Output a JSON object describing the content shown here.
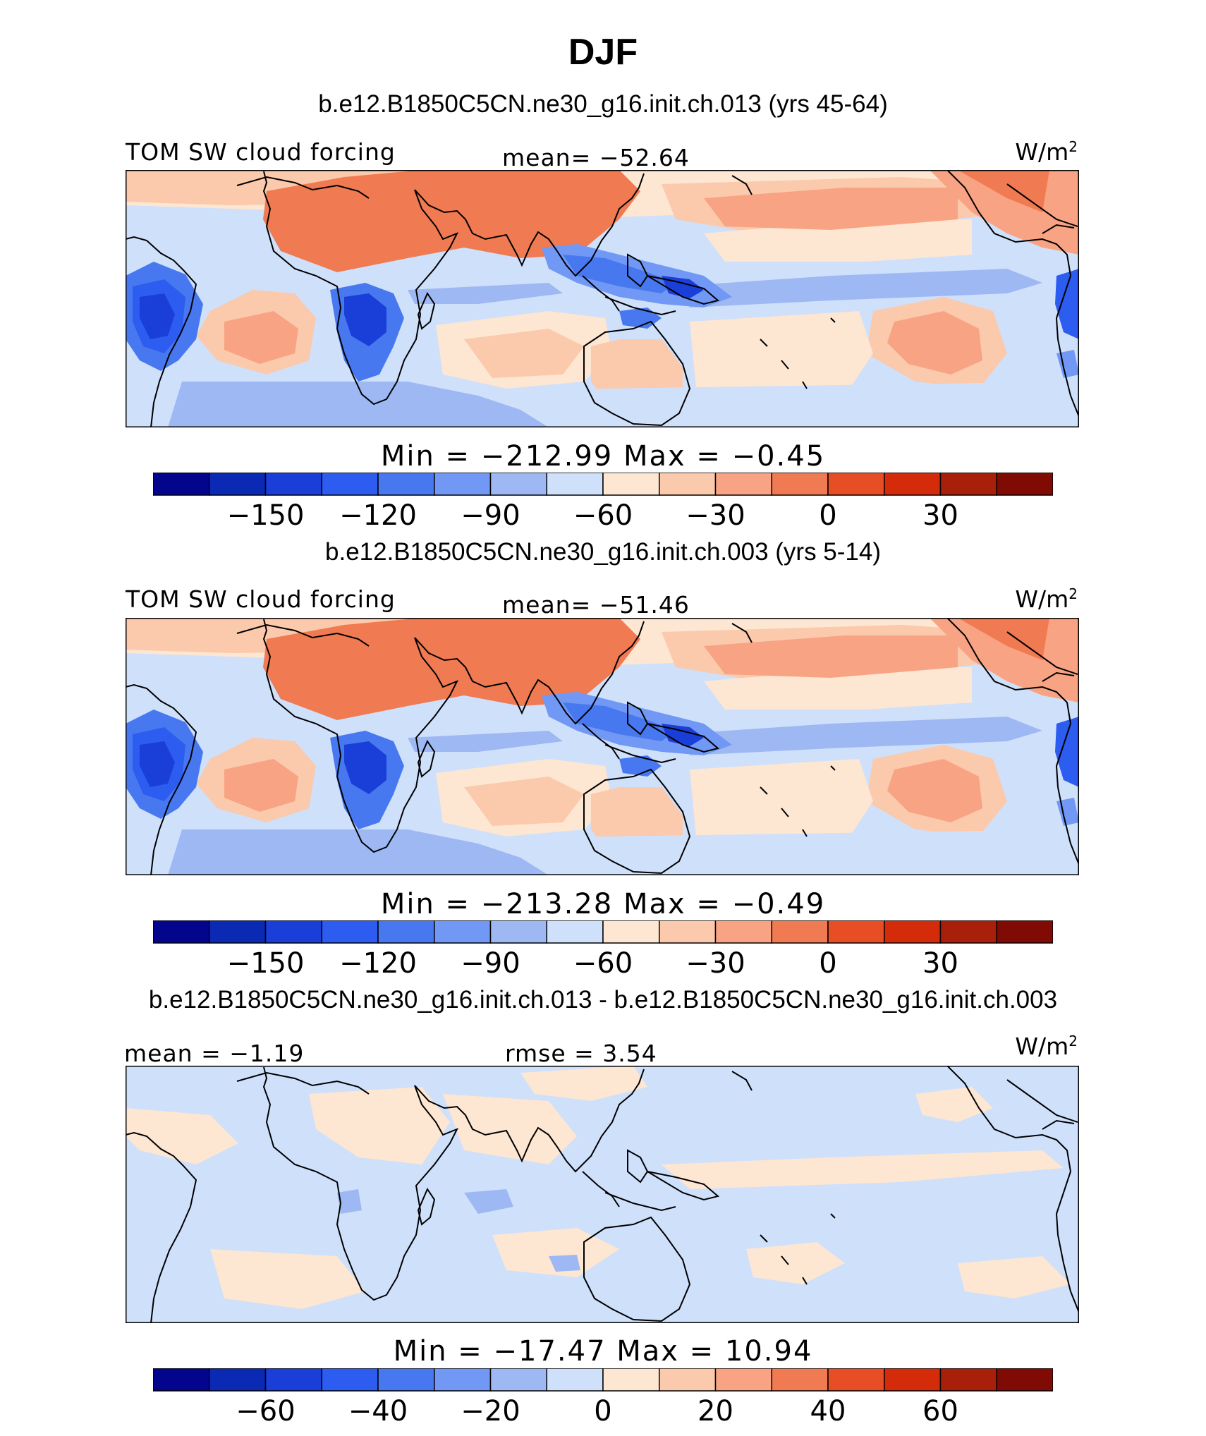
{
  "title": "DJF",
  "panels": [
    {
      "case_title": "b.e12.B1850C5CN.ne30_g16.init.ch.013 (yrs 45-64)",
      "left_label": "TOM SW cloud forcing",
      "center_label": "mean= −52.64",
      "units": "W/m",
      "units_sup": "2",
      "minmax": "Min = −212.99 Max =  −0.45",
      "colorbar_ticks": [
        "−150",
        "−120",
        "−90",
        "−60",
        "−30",
        "0",
        "30"
      ]
    },
    {
      "case_title": "b.e12.B1850C5CN.ne30_g16.init.ch.003 (yrs 5-14)",
      "left_label": "TOM SW cloud forcing",
      "center_label": "mean= −51.46",
      "units": "W/m",
      "units_sup": "2",
      "minmax": "Min = −213.28 Max =  −0.49",
      "colorbar_ticks": [
        "−150",
        "−120",
        "−90",
        "−60",
        "−30",
        "0",
        "30"
      ]
    },
    {
      "case_title": "b.e12.B1850C5CN.ne30_g16.init.ch.013 - b.e12.B1850C5CN.ne30_g16.init.ch.003",
      "left_label": "mean =  −1.19",
      "center_label": "rmse =   3.54",
      "units": "W/m",
      "units_sup": "2",
      "minmax": "Min = −17.47 Max =  10.94",
      "colorbar_ticks": [
        "−60",
        "−40",
        "−20",
        "0",
        "20",
        "40",
        "60"
      ]
    }
  ],
  "colorbar_colors": [
    "#03058c",
    "#0a2ab4",
    "#1a3fd8",
    "#2d5cf0",
    "#4878f0",
    "#7198f4",
    "#9eb8f4",
    "#cfe0fb",
    "#fde6d2",
    "#fbc9ab",
    "#f8a383",
    "#f07a52",
    "#e84e25",
    "#d42b0b",
    "#a8200a",
    "#800a04"
  ],
  "map_colors": {
    "ocean_light": "#cfe0fb",
    "pale_orange": "#fde6d2",
    "light_orange": "#fbc9ab",
    "mid_orange": "#f8a383",
    "orange": "#f07a52",
    "strong_orange": "#e8643a",
    "blue1": "#9eb8f4",
    "blue2": "#7198f4",
    "blue3": "#4878f0",
    "blue4": "#2d5cf0",
    "blue5": "#1a3fd8"
  }
}
